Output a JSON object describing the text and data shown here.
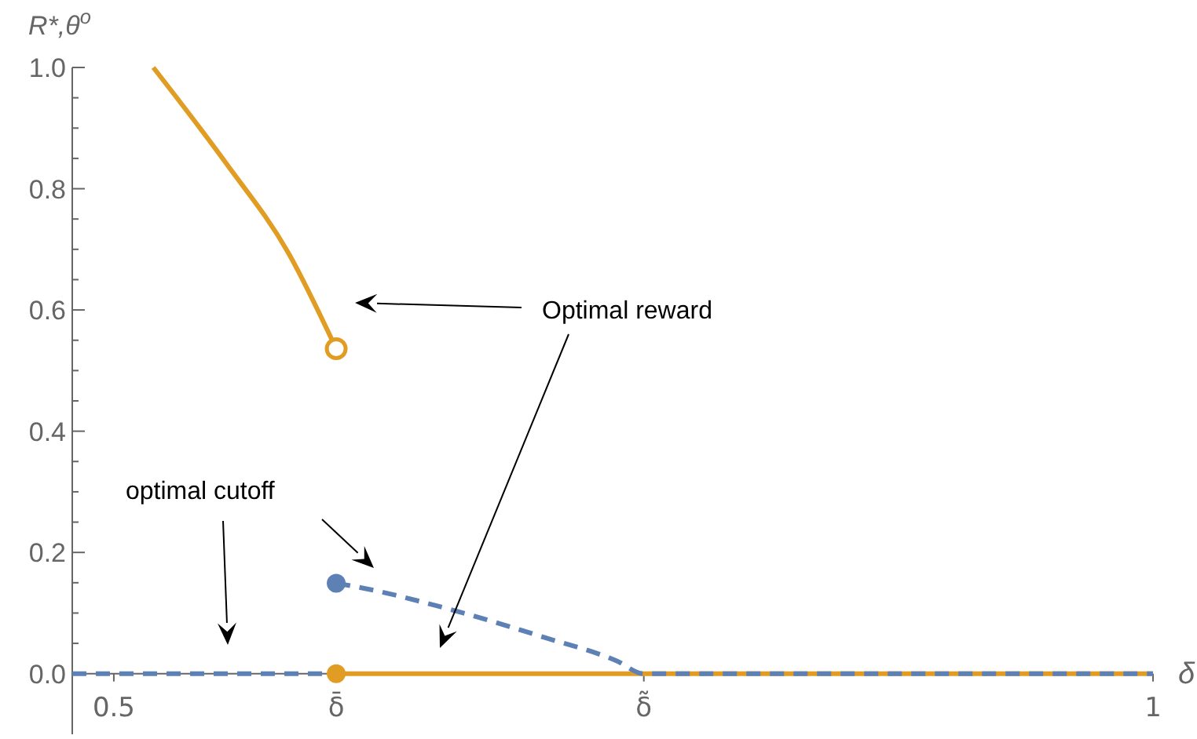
{
  "chart_data": {
    "type": "line",
    "xlabel": "δ",
    "ylabel": "R*,θ$^{o}$",
    "xlim": [
      0.48,
      1.0
    ],
    "ylim": [
      -0.1,
      1.0
    ],
    "xticks": [
      {
        "value": 0.5,
        "label": "0.5"
      },
      {
        "value": 0.607,
        "label": "δ̄"
      },
      {
        "value": 0.755,
        "label": "δ̃"
      },
      {
        "value": 1,
        "label": "1"
      }
    ],
    "yticks": [
      {
        "value": 0,
        "label": "0.0"
      },
      {
        "value": 0.05,
        "label": null
      },
      {
        "value": 0.1,
        "label": null
      },
      {
        "value": 0.15,
        "label": null
      },
      {
        "value": 0.2,
        "label": "0.2"
      },
      {
        "value": 0.25,
        "label": null
      },
      {
        "value": 0.3,
        "label": null
      },
      {
        "value": 0.35,
        "label": null
      },
      {
        "value": 0.4,
        "label": "0.4"
      },
      {
        "value": 0.45,
        "label": null
      },
      {
        "value": 0.5,
        "label": null
      },
      {
        "value": 0.55,
        "label": null
      },
      {
        "value": 0.6,
        "label": "0.6"
      },
      {
        "value": 0.65,
        "label": null
      },
      {
        "value": 0.7,
        "label": null
      },
      {
        "value": 0.75,
        "label": null
      },
      {
        "value": 0.8,
        "label": "0.8"
      },
      {
        "value": 0.85,
        "label": null
      },
      {
        "value": 0.9,
        "label": null
      },
      {
        "value": 0.95,
        "label": null
      },
      {
        "value": 1.0,
        "label": "1.0"
      }
    ],
    "grid": false,
    "annotations": [
      "Optimal reward",
      "optimal cutoff"
    ],
    "series": [
      {
        "color": "#e19c24",
        "line_style": "solid",
        "x": [
          0.519,
          0.554,
          0.584,
          0.607
        ],
        "values": [
          1.0,
          0.842,
          0.694,
          0.536
        ]
      },
      {
        "color": "#e19c24",
        "line_style": "solid",
        "x": [
          0.607,
          1.0
        ],
        "values": [
          0,
          0
        ]
      },
      {
        "color": "#5e81b5",
        "line_style": "dashed",
        "x": [
          0.48,
          0.607
        ],
        "values": [
          0,
          0
        ]
      },
      {
        "color": "#5e81b5",
        "line_style": "dashed",
        "x": [
          0.607,
          0.614,
          0.664,
          0.707,
          0.742,
          0.755,
          1.0
        ],
        "values": [
          0.149,
          0.145,
          0.104,
          0.06,
          0.021,
          0,
          0
        ]
      },
      {
        "type": "scatter",
        "color": "#e19c24",
        "marker": "circle-open",
        "x": [
          0.607
        ],
        "values": [
          0.536
        ]
      },
      {
        "type": "scatter",
        "color": "#e19c24",
        "marker": "circle",
        "x": [
          0.607
        ],
        "values": [
          0
        ]
      },
      {
        "type": "scatter",
        "color": "#5e81b5",
        "marker": "circle",
        "x": [
          0.607
        ],
        "values": [
          0.149
        ]
      }
    ]
  }
}
